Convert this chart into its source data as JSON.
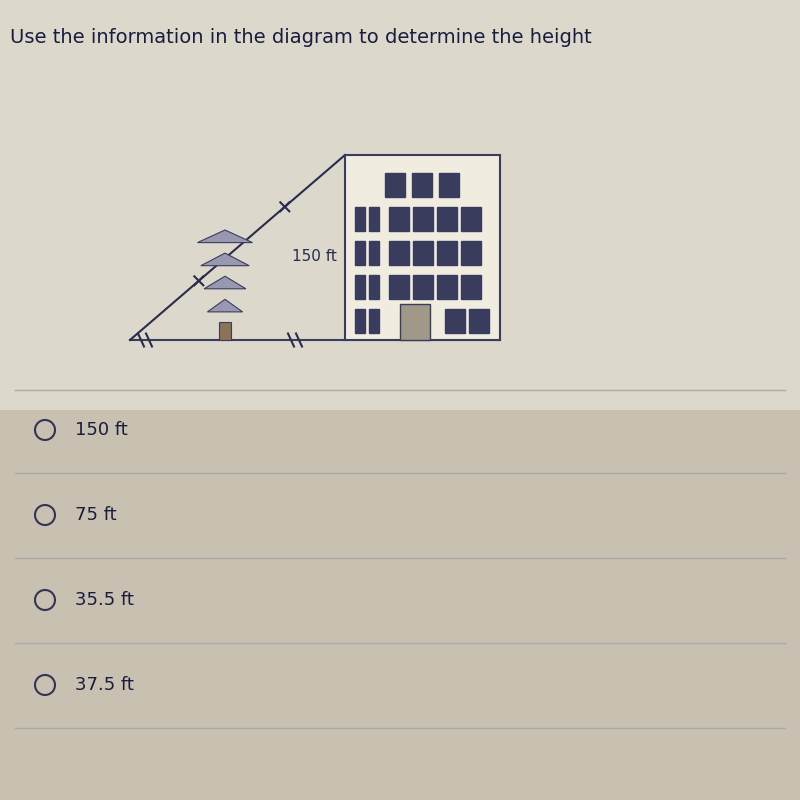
{
  "title": "Use the information in the diagram to determine the height",
  "title_fontsize": 14,
  "top_bg": "#ddd8cc",
  "bottom_bg": "#c8c0b0",
  "choices": [
    "150 ft",
    "75 ft",
    "35.5 ft",
    "37.5 ft"
  ],
  "diagram_label": "150 ft",
  "building_fill": "#f0ece0",
  "building_border": "#3a3c5e",
  "win_dark": "#3a3c5e",
  "win_light": "#c8c4b0",
  "door_fill": "#a09888",
  "line_color": "#2a2c4e",
  "tree_fill": "#9898b0",
  "tree_outline": "#3a3c5e",
  "trunk_fill": "#8b7355",
  "ground_color": "#3a3c5e",
  "sep_color": "#aaaaaa",
  "text_color": "#1a1c3e",
  "circle_color": "#333355"
}
